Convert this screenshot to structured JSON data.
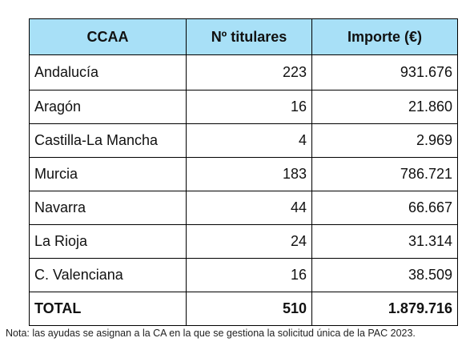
{
  "table": {
    "headers": [
      "CCAA",
      "Nº titulares",
      "Importe (€)"
    ],
    "rows": [
      {
        "ccaa": "Andalucía",
        "titulares": "223",
        "importe": "931.676"
      },
      {
        "ccaa": "Aragón",
        "titulares": "16",
        "importe": "21.860"
      },
      {
        "ccaa": "Castilla-La Mancha",
        "titulares": "4",
        "importe": "2.969"
      },
      {
        "ccaa": "Murcia",
        "titulares": "183",
        "importe": "786.721"
      },
      {
        "ccaa": "Navarra",
        "titulares": "44",
        "importe": "66.667"
      },
      {
        "ccaa": "La Rioja",
        "titulares": "24",
        "importe": "31.314"
      },
      {
        "ccaa": "C. Valenciana",
        "titulares": "16",
        "importe": "38.509"
      }
    ],
    "total": {
      "ccaa": "TOTAL",
      "titulares": "510",
      "importe": "1.879.716"
    },
    "header_color": "#a8e0f7"
  },
  "note": "Nota: las ayudas se asignan a la CA en la que se gestiona la solicitud única de la PAC 2023."
}
